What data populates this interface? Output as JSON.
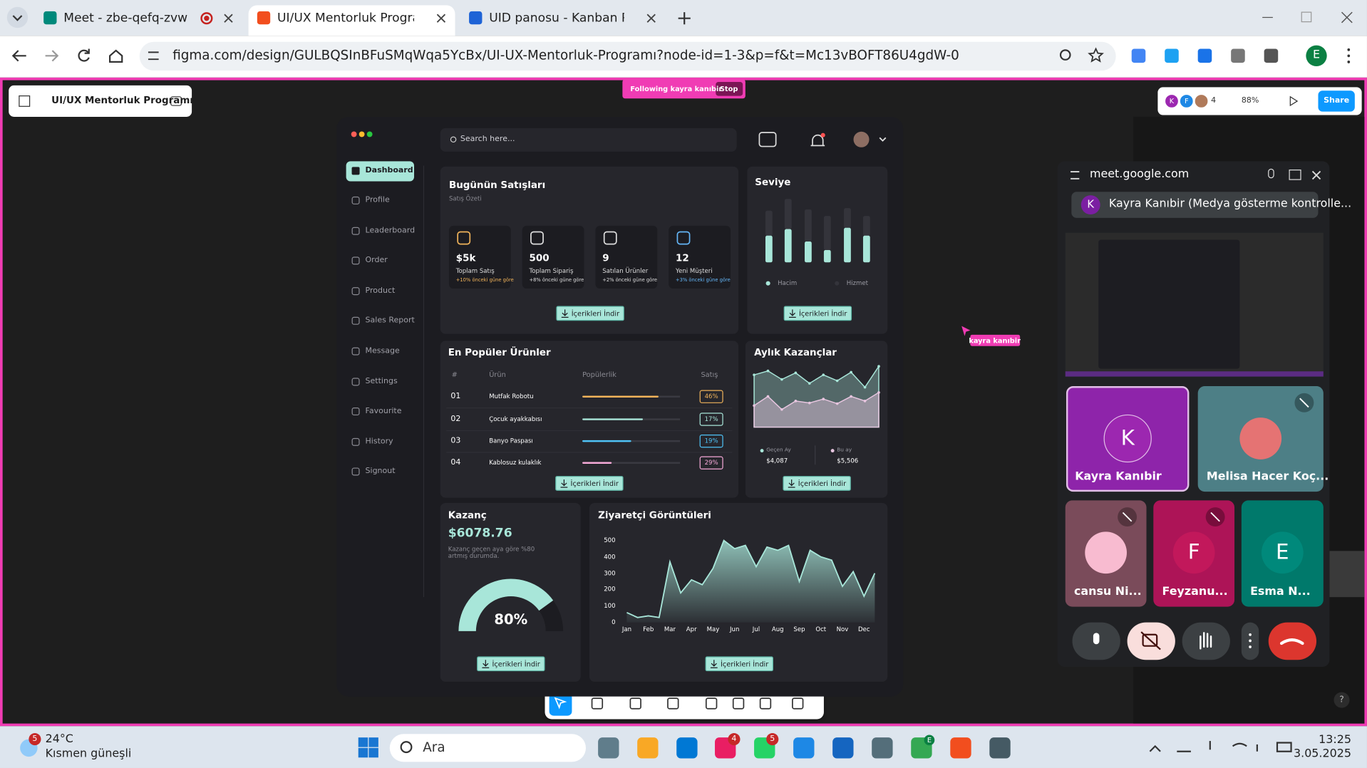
{
  "browser": {
    "tabs": [
      {
        "title": "Meet - zbe-qefq-zvw"
      },
      {
        "title": "UI/UX Mentorluk Programı – Fig"
      },
      {
        "title": "UID panosu - Kanban Panosu -"
      }
    ],
    "active_tab": 1,
    "url": "figma.com/design/GULBQSInBFuSMqWqa5YcBx/UI-UX-Mentorluk-Programı?node-id=1-3&p=f&t=Mc13vBOFT86U4gdW-0",
    "profile": "E"
  },
  "figma": {
    "file_name": "UI/UX Mentorluk Programı",
    "following": "Following kayra kanıbir",
    "stop": "Stop",
    "avatars": [
      "K",
      "F"
    ],
    "viewer_count": "4",
    "zoom": "88%",
    "share": "Share",
    "cursor_label": "kayra kanıbir",
    "help": "?"
  },
  "dashboard": {
    "search": "Search here...",
    "menu": [
      "Dashboard",
      "Profile",
      "Leaderboard",
      "Order",
      "Product",
      "Sales Report",
      "Message",
      "Settings",
      "Favourite",
      "History",
      "Signout"
    ],
    "active_menu": 0,
    "sales": {
      "title": "Bugünün Satışları",
      "subtitle": "Satış Özeti",
      "cards": [
        {
          "value": "$5k",
          "label": "Toplam Satış",
          "change": "+10% önceki güne göre",
          "color": "#f0b35a"
        },
        {
          "value": "500",
          "label": "Toplam Sipariş",
          "change": "+8% önceki güne göre",
          "color": "#dddddd"
        },
        {
          "value": "9",
          "label": "Satılan Ürünler",
          "change": "+2% önceki güne göre",
          "color": "#dddddd"
        },
        {
          "value": "12",
          "label": "Yeni Müşteri",
          "change": "+3% önceki güne göre",
          "color": "#64b5f6"
        }
      ],
      "button": "İçerikleri İndir"
    },
    "level": {
      "title": "Seviye",
      "type": "bar",
      "ylim": [
        0,
        100
      ],
      "series": [
        {
          "name": "Hacim",
          "color": "#a8e6d9",
          "values": [
            41,
            51,
            32,
            19,
            53,
            41
          ]
        },
        {
          "name": "Hizmet",
          "color": "#34343b",
          "values": [
            38,
            46,
            49,
            52,
            30,
            30
          ]
        }
      ],
      "button": "İçerikleri İndir"
    },
    "products": {
      "title": "En Popüler Ürünler",
      "headers": [
        "#",
        "Ürün",
        "Popülerlik",
        "Satış"
      ],
      "popularity_lim": [
        0,
        100
      ],
      "rows": [
        {
          "rank": "01",
          "name": "Mutfak Robotu",
          "popularity": 78,
          "sales": "46%",
          "color": "#f0b35a"
        },
        {
          "rank": "02",
          "name": "Çocuk ayakkabısı",
          "popularity": 62,
          "sales": "17%",
          "color": "#a8e6d9"
        },
        {
          "rank": "03",
          "name": "Banyo Paspası",
          "popularity": 50,
          "sales": "19%",
          "color": "#4fc3f7"
        },
        {
          "rank": "04",
          "name": "Kablosuz kulaklık",
          "popularity": 30,
          "sales": "29%",
          "color": "#f5a9d8"
        }
      ],
      "button": "İçerikleri İndir"
    },
    "monthly": {
      "title": "Aylık Kazançlar",
      "type": "area",
      "ylim": [
        0,
        100
      ],
      "series": [
        {
          "name": "Geçen Ay",
          "color": "#a8e6d9",
          "values": [
            80,
            86,
            73,
            83,
            67,
            80,
            71,
            84,
            61,
            93
          ],
          "total": "$4,087"
        },
        {
          "name": "Bu ay",
          "color": "#e8c6e0",
          "values": [
            33,
            47,
            27,
            40,
            37,
            43,
            36,
            47,
            40,
            53
          ],
          "total": "$5,506"
        }
      ],
      "button": "İçerikleri İndir"
    },
    "profit": {
      "title": "Kazanç",
      "amount": "$6078.76",
      "note": "Kazanç geçen aya göre %80 artmış durumda.",
      "gauge": {
        "value": 80,
        "label": "80%",
        "range": [
          0,
          100
        ]
      },
      "button": "İçerikleri İndir"
    },
    "visitors": {
      "title": "Ziyaretçi Görüntüleri",
      "type": "area",
      "color": "#a8e6d9",
      "x": [
        0,
        0.5,
        1,
        1.5,
        2,
        2.5,
        3,
        3.5,
        4,
        4.5,
        5,
        5.5,
        6,
        6.5,
        7,
        7.5,
        8,
        8.5,
        9,
        9.5,
        10,
        10.5,
        11,
        11.5
      ],
      "values": [
        60,
        30,
        40,
        30,
        370,
        180,
        260,
        230,
        330,
        500,
        450,
        470,
        340,
        460,
        440,
        470,
        250,
        440,
        400,
        380,
        220,
        310,
        160,
        300
      ],
      "xlim": [
        -0.5,
        11.6
      ],
      "ylim": [
        0,
        500
      ],
      "yticks": [
        0,
        100,
        200,
        300,
        400,
        500
      ],
      "xticks": [
        {
          "value": 0,
          "label": "Jan"
        },
        {
          "value": 1,
          "label": "Feb"
        },
        {
          "value": 2,
          "label": "Mar"
        },
        {
          "value": 3,
          "label": "Apr"
        },
        {
          "value": 4,
          "label": "May"
        },
        {
          "value": 5,
          "label": "Jun"
        },
        {
          "value": 6,
          "label": "Jul"
        },
        {
          "value": 7,
          "label": "Aug"
        },
        {
          "value": 8,
          "label": "Sep"
        },
        {
          "value": 9,
          "label": "Oct"
        },
        {
          "value": 10,
          "label": "Nov"
        },
        {
          "value": 11,
          "label": "Dec"
        }
      ],
      "button": "İçerikleri İndir"
    }
  },
  "meet": {
    "host": "meet.google.com",
    "presenting": "Kayra Kanıbir (Medya gösterme kontrolle...",
    "presenter_initial": "K",
    "participants": [
      {
        "name": "Kayra Kanıbir",
        "initial": "K"
      },
      {
        "name": "Melisa Hacer Koç..."
      },
      {
        "name": "cansu Ni..."
      },
      {
        "name": "Feyzanu...",
        "initial": "F"
      },
      {
        "name": "Esma N...",
        "initial": "E"
      }
    ]
  },
  "taskbar": {
    "temperature": "24°C",
    "weather": "Kısmen güneşli",
    "weather_badge": "5",
    "search": "Ara",
    "badges": [
      "4",
      "5"
    ],
    "chrome_badge": "E",
    "time": "13:25",
    "date": "3.05.2025"
  }
}
